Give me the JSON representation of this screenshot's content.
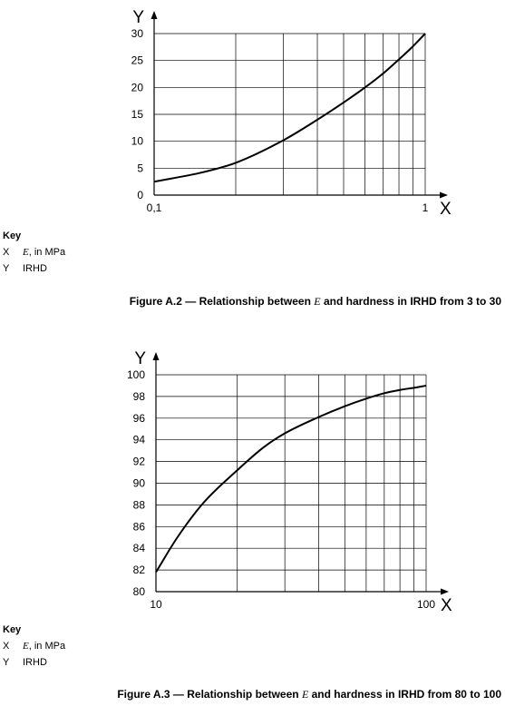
{
  "figures": [
    {
      "id": "a2",
      "key": {
        "title": "Key",
        "items": [
          {
            "symbol": "X",
            "var": "E",
            "desc": ", in MPa"
          },
          {
            "symbol": "Y",
            "var": "",
            "desc": "IRHD"
          }
        ]
      },
      "caption": {
        "prefix": "Figure A.2 — Relationship between ",
        "var": "E",
        "suffix": " and hardness in IRHD from 3 to 30"
      }
    },
    {
      "id": "a3",
      "key": {
        "title": "Key",
        "items": [
          {
            "symbol": "X",
            "var": "E",
            "desc": ", in MPa"
          },
          {
            "symbol": "Y",
            "var": "",
            "desc": "IRHD"
          }
        ]
      },
      "caption": {
        "prefix": "Figure A.3 — Relationship between ",
        "var": "E",
        "suffix": " and hardness in IRHD from 80 to 100"
      }
    }
  ],
  "chart_data": [
    {
      "type": "line",
      "x_scale": "log",
      "xlim": [
        0.1,
        1
      ],
      "ylim": [
        0,
        30
      ],
      "x_ticks": [
        0.1,
        0.2,
        0.3,
        0.4,
        0.5,
        0.6,
        0.7,
        0.8,
        0.9,
        1
      ],
      "x_tick_labels": [
        {
          "value": 0.1,
          "label": "0,1"
        },
        {
          "value": 1,
          "label": "1"
        }
      ],
      "y_ticks": [
        0,
        5,
        10,
        15,
        20,
        25,
        30
      ],
      "y_tick_labels": [
        "0",
        "5",
        "10",
        "15",
        "20",
        "25",
        "30"
      ],
      "x_axis_letter": "X",
      "y_axis_letter": "Y",
      "grid": true,
      "series": [
        {
          "x": [
            0.1,
            0.15,
            0.2,
            0.3,
            0.4,
            0.5,
            0.6,
            0.7,
            0.8,
            0.9,
            1.0
          ],
          "y": [
            2.5,
            4.2,
            6.0,
            10.2,
            14.0,
            17.2,
            20.0,
            22.6,
            25.2,
            27.6,
            30.0
          ]
        }
      ],
      "style": {
        "line_color": "#000000",
        "grid_color": "#000000"
      }
    },
    {
      "type": "line",
      "x_scale": "log",
      "xlim": [
        10,
        100
      ],
      "ylim": [
        80,
        100
      ],
      "x_ticks": [
        10,
        20,
        30,
        40,
        50,
        60,
        70,
        80,
        90,
        100
      ],
      "x_tick_labels": [
        {
          "value": 10,
          "label": "10"
        },
        {
          "value": 100,
          "label": "100"
        }
      ],
      "y_ticks": [
        80,
        82,
        84,
        86,
        88,
        90,
        92,
        94,
        96,
        98,
        100
      ],
      "y_tick_labels": [
        "80",
        "82",
        "84",
        "86",
        "88",
        "90",
        "92",
        "94",
        "96",
        "98",
        "100"
      ],
      "x_axis_letter": "X",
      "y_axis_letter": "Y",
      "grid": true,
      "series": [
        {
          "x": [
            10,
            12,
            15,
            20,
            25,
            30,
            40,
            50,
            60,
            70,
            80,
            90,
            100
          ],
          "y": [
            81.8,
            85.0,
            88.2,
            91.2,
            93.3,
            94.6,
            96.1,
            97.1,
            97.8,
            98.3,
            98.6,
            98.8,
            99.0
          ]
        }
      ],
      "style": {
        "line_color": "#000000",
        "grid_color": "#000000"
      }
    }
  ]
}
